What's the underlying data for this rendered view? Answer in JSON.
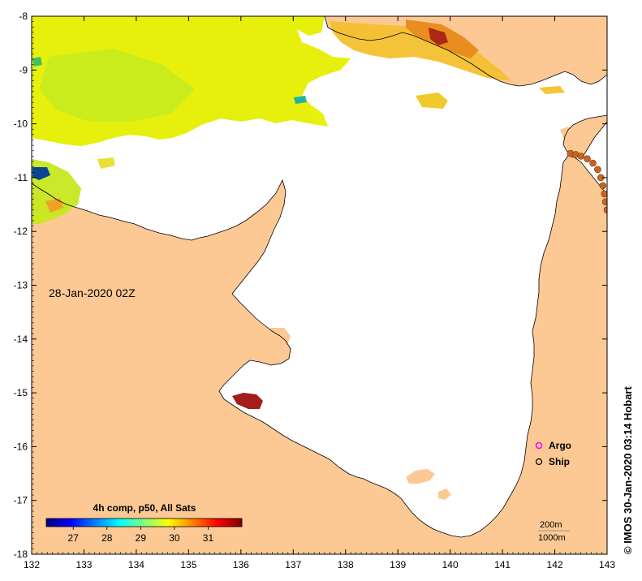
{
  "map": {
    "date_label": "28-Jan-2020 02Z",
    "credit": "© IMOS 30-Jan-2020 03:14 Hobart",
    "land_color": "#fcc994",
    "ocean_color": "#ffffff",
    "lon_range": [
      132,
      143
    ],
    "lat_range": [
      -18,
      -8
    ],
    "lon_ticks": [
      132,
      133,
      134,
      135,
      136,
      137,
      138,
      139,
      140,
      141,
      142,
      143
    ],
    "lat_ticks": [
      -8,
      -9,
      -10,
      -11,
      -12,
      -13,
      -14,
      -15,
      -16,
      -17,
      -18
    ]
  },
  "colorbar": {
    "title": "4h comp, p50, All Sats",
    "ticks": [
      27,
      28,
      29,
      30,
      31
    ],
    "range": [
      26.2,
      32.0
    ],
    "colors": [
      "#00007f",
      "#0000ff",
      "#007fff",
      "#00ffff",
      "#7fff7f",
      "#ffff00",
      "#ff7f00",
      "#ff0000",
      "#7f0000"
    ]
  },
  "legend": {
    "argo_label": "Argo",
    "ship_label": "Ship",
    "argo_color": "#ff00ff"
  },
  "isobaths": {
    "label_200": "200m",
    "label_1000": "1000m"
  },
  "ship_track": {
    "color": "#c8641e",
    "points": [
      [
        142.3,
        -10.55
      ],
      [
        142.4,
        -10.57
      ],
      [
        142.5,
        -10.6
      ],
      [
        142.62,
        -10.65
      ],
      [
        142.73,
        -10.73
      ],
      [
        142.82,
        -10.85
      ],
      [
        142.88,
        -11.0
      ],
      [
        142.92,
        -11.15
      ],
      [
        142.95,
        -11.3
      ],
      [
        142.97,
        -11.45
      ],
      [
        143.0,
        -11.6
      ]
    ]
  }
}
